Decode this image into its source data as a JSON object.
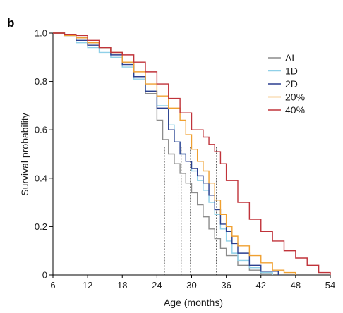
{
  "figure": {
    "panel_label": "b"
  },
  "chart_data": {
    "type": "line",
    "step": true,
    "xlabel": "Age (months)",
    "ylabel": "Survival probability",
    "xlim": [
      6,
      54
    ],
    "ylim": [
      0,
      1.0
    ],
    "xticks": [
      6,
      12,
      18,
      24,
      30,
      36,
      42,
      48,
      54
    ],
    "yticks": [
      0,
      0.2,
      0.4,
      0.6,
      0.8,
      1.0
    ],
    "ytick_labels": [
      "0",
      "0.2",
      "0.4",
      "0.6",
      "0.8",
      "1.0"
    ],
    "grid": false,
    "legend_position": "top-right",
    "series": [
      {
        "name": "AL",
        "color": "#8c8c8c",
        "points": [
          [
            6,
            1.0
          ],
          [
            8,
            0.995
          ],
          [
            10,
            0.98
          ],
          [
            12,
            0.96
          ],
          [
            14,
            0.94
          ],
          [
            16,
            0.92
          ],
          [
            18,
            0.88
          ],
          [
            20,
            0.82
          ],
          [
            22,
            0.75
          ],
          [
            24,
            0.64
          ],
          [
            25,
            0.56
          ],
          [
            26,
            0.5
          ],
          [
            27,
            0.46
          ],
          [
            28,
            0.42
          ],
          [
            29,
            0.38
          ],
          [
            30,
            0.34
          ],
          [
            31,
            0.29
          ],
          [
            32,
            0.24
          ],
          [
            33,
            0.19
          ],
          [
            34,
            0.15
          ],
          [
            35,
            0.11
          ],
          [
            36,
            0.08
          ],
          [
            38,
            0.04
          ],
          [
            40,
            0.02
          ],
          [
            42,
            0.005
          ],
          [
            44,
            0.0
          ]
        ]
      },
      {
        "name": "1D",
        "color": "#8fd0e8",
        "points": [
          [
            6,
            1.0
          ],
          [
            8,
            0.99
          ],
          [
            10,
            0.96
          ],
          [
            12,
            0.94
          ],
          [
            14,
            0.92
          ],
          [
            16,
            0.9
          ],
          [
            18,
            0.86
          ],
          [
            20,
            0.81
          ],
          [
            22,
            0.76
          ],
          [
            24,
            0.7
          ],
          [
            26,
            0.62
          ],
          [
            27,
            0.55
          ],
          [
            28,
            0.5
          ],
          [
            29,
            0.47
          ],
          [
            30,
            0.43
          ],
          [
            31,
            0.39
          ],
          [
            32,
            0.35
          ],
          [
            33,
            0.3
          ],
          [
            34,
            0.25
          ],
          [
            35,
            0.19
          ],
          [
            36,
            0.14
          ],
          [
            37,
            0.09
          ],
          [
            38,
            0.06
          ],
          [
            40,
            0.03
          ],
          [
            42,
            0.01
          ],
          [
            44,
            0.0
          ]
        ]
      },
      {
        "name": "2D",
        "color": "#2b3f8f",
        "points": [
          [
            6,
            1.0
          ],
          [
            8,
            0.99
          ],
          [
            10,
            0.97
          ],
          [
            12,
            0.95
          ],
          [
            14,
            0.94
          ],
          [
            16,
            0.91
          ],
          [
            18,
            0.87
          ],
          [
            20,
            0.82
          ],
          [
            22,
            0.76
          ],
          [
            24,
            0.69
          ],
          [
            26,
            0.6
          ],
          [
            27,
            0.55
          ],
          [
            28,
            0.5
          ],
          [
            29,
            0.47
          ],
          [
            30,
            0.44
          ],
          [
            31,
            0.41
          ],
          [
            32,
            0.38
          ],
          [
            33,
            0.33
          ],
          [
            34,
            0.27
          ],
          [
            35,
            0.21
          ],
          [
            36,
            0.18
          ],
          [
            37,
            0.13
          ],
          [
            38,
            0.09
          ],
          [
            40,
            0.04
          ],
          [
            42,
            0.015
          ],
          [
            45,
            0.0
          ]
        ]
      },
      {
        "name": "20%",
        "color": "#f0a030",
        "points": [
          [
            6,
            1.0
          ],
          [
            8,
            0.99
          ],
          [
            10,
            0.98
          ],
          [
            12,
            0.96
          ],
          [
            14,
            0.94
          ],
          [
            16,
            0.92
          ],
          [
            18,
            0.88
          ],
          [
            20,
            0.84
          ],
          [
            22,
            0.79
          ],
          [
            24,
            0.74
          ],
          [
            26,
            0.69
          ],
          [
            28,
            0.64
          ],
          [
            29,
            0.58
          ],
          [
            30,
            0.52
          ],
          [
            31,
            0.47
          ],
          [
            32,
            0.43
          ],
          [
            33,
            0.38
          ],
          [
            34,
            0.31
          ],
          [
            35,
            0.25
          ],
          [
            36,
            0.2
          ],
          [
            37,
            0.16
          ],
          [
            38,
            0.12
          ],
          [
            40,
            0.08
          ],
          [
            42,
            0.05
          ],
          [
            44,
            0.02
          ],
          [
            46,
            0.01
          ],
          [
            48,
            0.0
          ]
        ]
      },
      {
        "name": "40%",
        "color": "#c0333a",
        "points": [
          [
            6,
            1.0
          ],
          [
            8,
            0.995
          ],
          [
            10,
            0.99
          ],
          [
            12,
            0.97
          ],
          [
            14,
            0.94
          ],
          [
            16,
            0.92
          ],
          [
            18,
            0.91
          ],
          [
            20,
            0.88
          ],
          [
            22,
            0.84
          ],
          [
            24,
            0.79
          ],
          [
            26,
            0.73
          ],
          [
            28,
            0.67
          ],
          [
            30,
            0.6
          ],
          [
            32,
            0.57
          ],
          [
            33,
            0.54
          ],
          [
            34,
            0.51
          ],
          [
            35,
            0.46
          ],
          [
            36,
            0.39
          ],
          [
            38,
            0.3
          ],
          [
            40,
            0.23
          ],
          [
            42,
            0.18
          ],
          [
            44,
            0.14
          ],
          [
            46,
            0.1
          ],
          [
            48,
            0.07
          ],
          [
            50,
            0.04
          ],
          [
            52,
            0.01
          ],
          [
            54,
            0.0
          ]
        ]
      }
    ],
    "reference_lines": [
      {
        "x": 25.3,
        "y": 0.5
      },
      {
        "x": 27.8,
        "y": 0.5
      },
      {
        "x": 28.2,
        "y": 0.5
      },
      {
        "x": 29.8,
        "y": 0.5
      },
      {
        "x": 34.3,
        "y": 0.5
      }
    ]
  }
}
